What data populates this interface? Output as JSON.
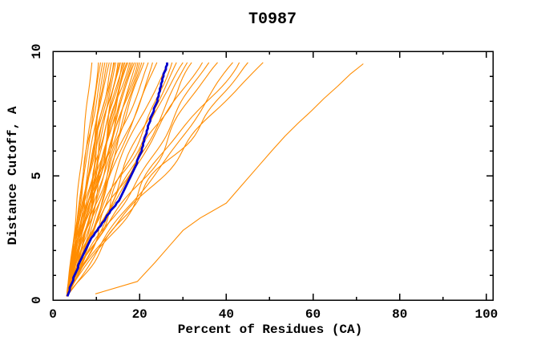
{
  "title": "T0987",
  "chart_data": {
    "type": "line",
    "title": "T0987",
    "xlabel": "Percent of Residues (CA)",
    "ylabel": "Distance Cutoff, A",
    "xlim": [
      0,
      101.5
    ],
    "ylim": [
      0,
      10
    ],
    "x_major_ticks": [
      0,
      20,
      40,
      60,
      80,
      100
    ],
    "x_minor_ticks": [
      10,
      30,
      50,
      70,
      90
    ],
    "y_major_ticks": [
      0,
      5,
      10
    ],
    "y_minor_ticks": [
      1,
      2,
      3,
      4,
      6,
      7,
      8,
      9
    ],
    "grid": false,
    "legend": "none",
    "background_color": "#ffffff",
    "frame_color": "#000000",
    "model_color": "#ff8c00",
    "highlight_color": "#0000cd",
    "series": [
      {
        "name": "model-family",
        "color": "#ff8c00",
        "style": "fan",
        "start_point": [
          3.2,
          0.15
        ],
        "end_cutoff": 9.55,
        "curves": [
          {
            "t": 9.0,
            "g": 1.0
          },
          {
            "t": 10.5,
            "g": 0.95
          },
          {
            "t": 11.0,
            "g": 1.05
          },
          {
            "t": 11.5,
            "g": 1.1
          },
          {
            "t": 12.0,
            "g": 0.9
          },
          {
            "t": 12.5,
            "g": 1.0
          },
          {
            "t": 13.0,
            "g": 1.15
          },
          {
            "t": 13.5,
            "g": 0.95
          },
          {
            "t": 14.0,
            "g": 1.05
          },
          {
            "t": 14.2,
            "g": 1.2
          },
          {
            "t": 14.5,
            "g": 0.88
          },
          {
            "t": 15.0,
            "g": 1.0
          },
          {
            "t": 15.3,
            "g": 1.1
          },
          {
            "t": 15.6,
            "g": 0.92
          },
          {
            "t": 16.0,
            "g": 1.05
          },
          {
            "t": 16.3,
            "g": 1.15
          },
          {
            "t": 16.6,
            "g": 0.95
          },
          {
            "t": 17.0,
            "g": 1.0
          },
          {
            "t": 17.3,
            "g": 1.08
          },
          {
            "t": 17.7,
            "g": 1.18
          },
          {
            "t": 18.0,
            "g": 0.9
          },
          {
            "t": 18.4,
            "g": 1.02
          },
          {
            "t": 18.8,
            "g": 1.12
          },
          {
            "t": 19.2,
            "g": 0.96
          },
          {
            "t": 19.6,
            "g": 1.06
          },
          {
            "t": 20.0,
            "g": 1.15
          },
          {
            "t": 20.5,
            "g": 0.93
          },
          {
            "t": 21.0,
            "g": 1.04
          },
          {
            "t": 22.0,
            "g": 1.1
          },
          {
            "t": 23.0,
            "g": 0.97
          },
          {
            "t": 24.0,
            "g": 1.06
          },
          {
            "t": 26.5,
            "g": 1.12
          },
          {
            "t": 27.5,
            "g": 0.95
          },
          {
            "t": 28.5,
            "g": 1.05
          },
          {
            "t": 30.0,
            "g": 1.15
          },
          {
            "t": 31.0,
            "g": 1.0
          },
          {
            "t": 32.0,
            "g": 1.08
          },
          {
            "t": 34.5,
            "g": 1.18
          },
          {
            "t": 36.0,
            "g": 1.05
          },
          {
            "t": 38.0,
            "g": 1.12
          },
          {
            "t": 41.5,
            "g": 1.0
          },
          {
            "t": 43.0,
            "g": 1.1
          },
          {
            "t": 45.0,
            "g": 1.05
          },
          {
            "t": 48.5,
            "g": 1.15
          }
        ]
      },
      {
        "name": "outlier-model",
        "color": "#ff8c00",
        "points": [
          [
            0.25,
            9.8
          ],
          [
            0.75,
            19.5
          ],
          [
            1.5,
            23.5
          ],
          [
            2.2,
            27.0
          ],
          [
            2.8,
            30.0
          ],
          [
            3.3,
            34.0
          ],
          [
            3.9,
            40.0
          ],
          [
            4.6,
            43.5
          ],
          [
            5.3,
            47.0
          ],
          [
            6.0,
            50.5
          ],
          [
            6.6,
            53.6
          ],
          [
            7.1,
            56.5
          ],
          [
            7.6,
            59.6
          ],
          [
            8.1,
            62.5
          ],
          [
            8.6,
            65.7
          ],
          [
            9.1,
            68.7
          ],
          [
            9.5,
            71.6
          ]
        ]
      },
      {
        "name": "highlighted-model",
        "color": "#0000cd",
        "points": [
          [
            0.15,
            3.3
          ],
          [
            0.5,
            4.0
          ],
          [
            1.0,
            5.0
          ],
          [
            1.5,
            6.2
          ],
          [
            2.0,
            7.5
          ],
          [
            2.5,
            9.0
          ],
          [
            3.0,
            11.0
          ],
          [
            3.5,
            13.0
          ],
          [
            4.0,
            15.2
          ],
          [
            4.5,
            16.6
          ],
          [
            5.0,
            18.0
          ],
          [
            5.5,
            19.3
          ],
          [
            6.0,
            20.5
          ],
          [
            6.5,
            21.2
          ],
          [
            7.0,
            22.0
          ],
          [
            7.5,
            23.0
          ],
          [
            8.0,
            24.0
          ],
          [
            8.5,
            24.8
          ],
          [
            9.0,
            25.5
          ],
          [
            9.55,
            26.4
          ]
        ]
      }
    ]
  }
}
